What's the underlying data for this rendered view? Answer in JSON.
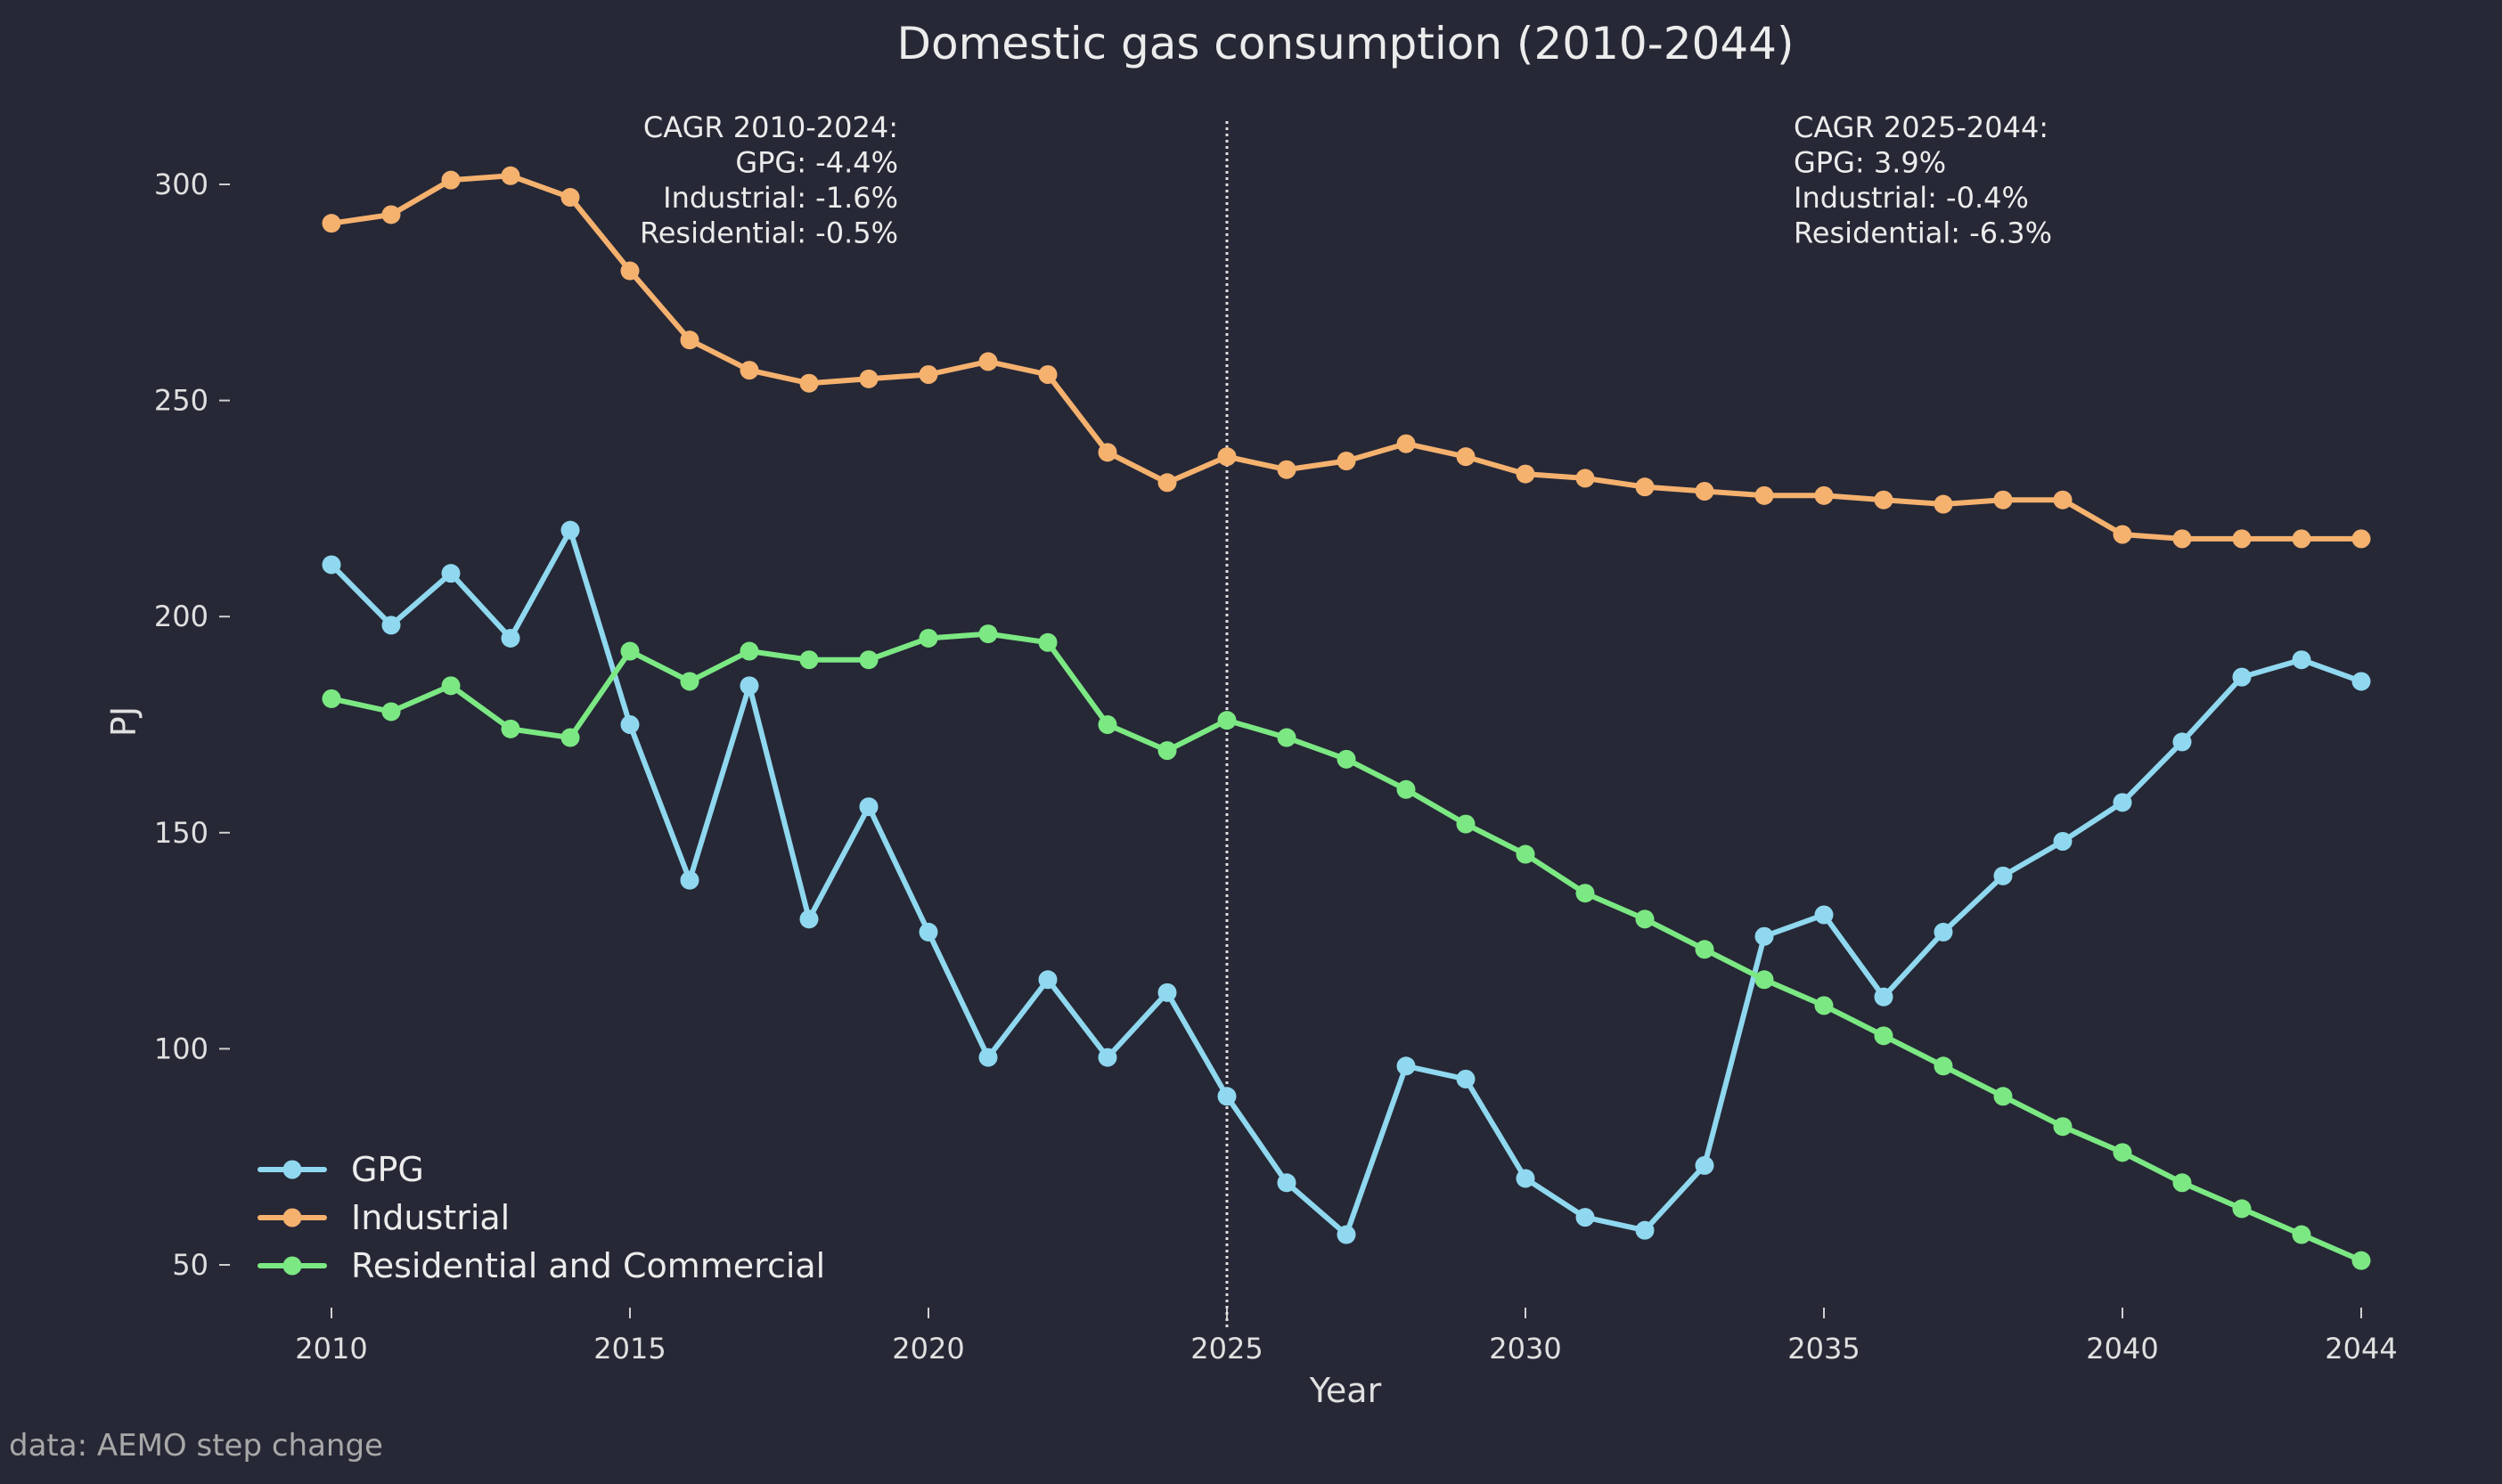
{
  "chart_data": {
    "type": "line",
    "title": "Domestic gas consumption (2010-2044)",
    "xlabel": "Year",
    "ylabel": "PJ",
    "xlim": [
      2008.5,
      2045.5
    ],
    "ylim": [
      40,
      320
    ],
    "x_ticks": [
      2010,
      2015,
      2020,
      2025,
      2030,
      2035,
      2040,
      2044
    ],
    "y_ticks": [
      50,
      100,
      150,
      200,
      250,
      300
    ],
    "grid": false,
    "legend_position": "lower-left",
    "divider_x": 2025,
    "x": [
      2010,
      2011,
      2012,
      2013,
      2014,
      2015,
      2016,
      2017,
      2018,
      2019,
      2020,
      2021,
      2022,
      2023,
      2024,
      2025,
      2026,
      2027,
      2028,
      2029,
      2030,
      2031,
      2032,
      2033,
      2034,
      2035,
      2036,
      2037,
      2038,
      2039,
      2040,
      2041,
      2042,
      2043,
      2044
    ],
    "series": [
      {
        "name": "GPG",
        "color": "#8fd8ef",
        "values": [
          212,
          198,
          210,
          195,
          220,
          175,
          139,
          184,
          130,
          156,
          127,
          98,
          116,
          98,
          113,
          89,
          69,
          57,
          96,
          93,
          70,
          61,
          58,
          73,
          126,
          131,
          112,
          127,
          140,
          148,
          157,
          171,
          186,
          190,
          185
        ]
      },
      {
        "name": "Industrial",
        "color": "#f5b16e",
        "values": [
          291,
          293,
          301,
          302,
          297,
          280,
          264,
          257,
          254,
          255,
          256,
          259,
          256,
          238,
          231,
          237,
          234,
          236,
          240,
          237,
          233,
          232,
          230,
          229,
          228,
          228,
          227,
          226,
          227,
          227,
          219,
          218,
          218,
          218,
          218
        ]
      },
      {
        "name": "Residential and Commercial",
        "color": "#7ce883",
        "values": [
          181,
          178,
          184,
          174,
          172,
          192,
          185,
          192,
          190,
          190,
          195,
          196,
          194,
          175,
          169,
          176,
          172,
          167,
          160,
          152,
          145,
          136,
          130,
          123,
          116,
          110,
          103,
          96,
          89,
          82,
          76,
          69,
          63,
          57,
          51
        ]
      }
    ],
    "annotations": {
      "left": [
        "CAGR 2010-2024:",
        "GPG: -4.4%",
        "Industrial: -1.6%",
        "Residential: -0.5%"
      ],
      "right": [
        "CAGR 2025-2044:",
        "GPG: 3.9%",
        "Industrial: -0.4%",
        "Residential: -6.3%"
      ]
    },
    "source_note": "data: AEMO step change"
  }
}
